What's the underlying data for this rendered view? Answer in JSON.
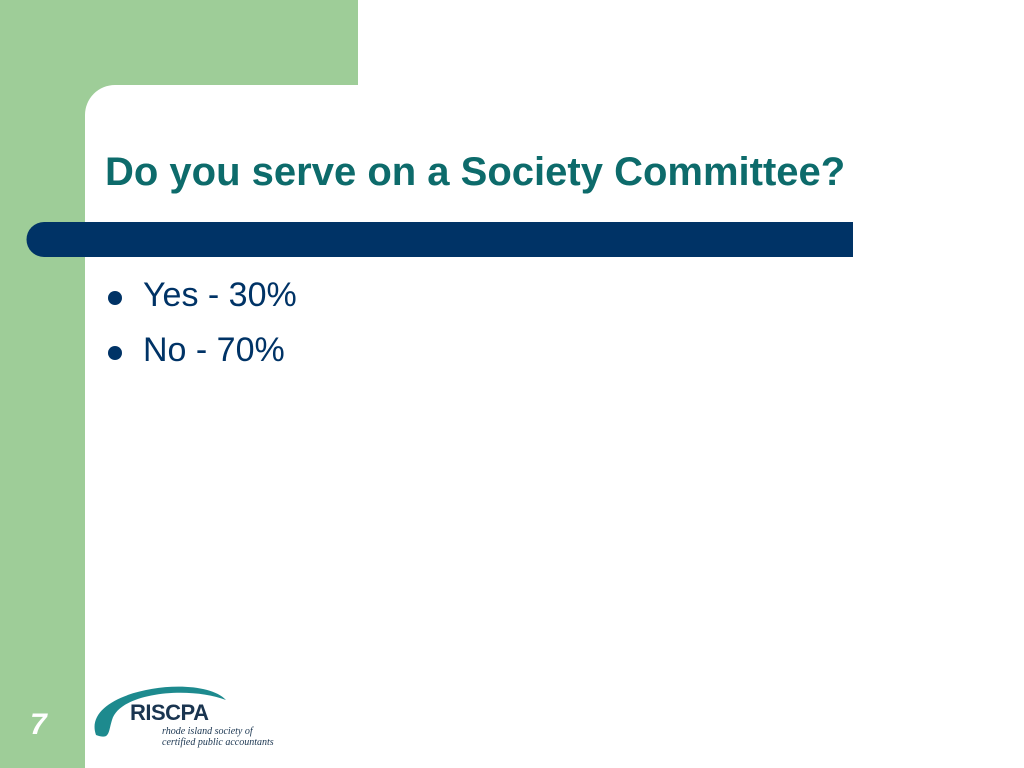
{
  "slide": {
    "title": "Do you serve on a Society Committee?",
    "bullets": [
      "Yes - 30%",
      "No - 70%"
    ],
    "page_number": "7",
    "logo": {
      "name": "RISCPA",
      "tagline_1": "rhode island society of",
      "tagline_2": "certified public accountants"
    }
  }
}
